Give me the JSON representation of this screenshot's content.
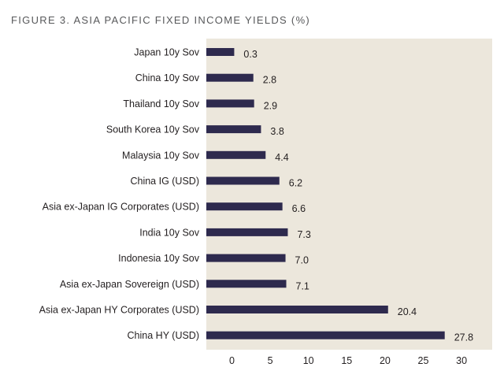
{
  "title": "FIGURE 3. ASIA PACIFIC FIXED INCOME YIELDS (%)",
  "colors": {
    "bar": "#2e2a4e",
    "plot_background": "#ece7dc",
    "text": "#231f20"
  },
  "chart_data": {
    "type": "bar",
    "orientation": "horizontal",
    "categories": [
      "Japan 10y Sov",
      "China 10y Sov",
      "Thailand 10y Sov",
      "South Korea 10y Sov",
      "Malaysia 10y Sov",
      "China IG (USD)",
      "Asia ex-Japan IG Corporates (USD)",
      "India 10y Sov",
      "Indonesia 10y Sov",
      "Asia ex-Japan Sovereign (USD)",
      "Asia ex-Japan HY Corporates (USD)",
      "China HY (USD)"
    ],
    "values": [
      0.3,
      2.8,
      2.9,
      3.8,
      4.4,
      6.2,
      6.6,
      7.3,
      7.0,
      7.1,
      20.4,
      27.8
    ],
    "value_labels": [
      "0.3",
      "2.8",
      "2.9",
      "3.8",
      "4.4",
      "6.2",
      "6.6",
      "7.3",
      "7.0",
      "7.1",
      "20.4",
      "27.8"
    ],
    "x_ticks": [
      0,
      5,
      10,
      15,
      20,
      25,
      30
    ],
    "x_tick_labels": [
      "0",
      "5",
      "10",
      "15",
      "20",
      "25",
      "30"
    ],
    "xlim": [
      -3.2,
      30
    ],
    "xlabel": "",
    "ylabel": "",
    "grid": false,
    "legend": "none"
  }
}
